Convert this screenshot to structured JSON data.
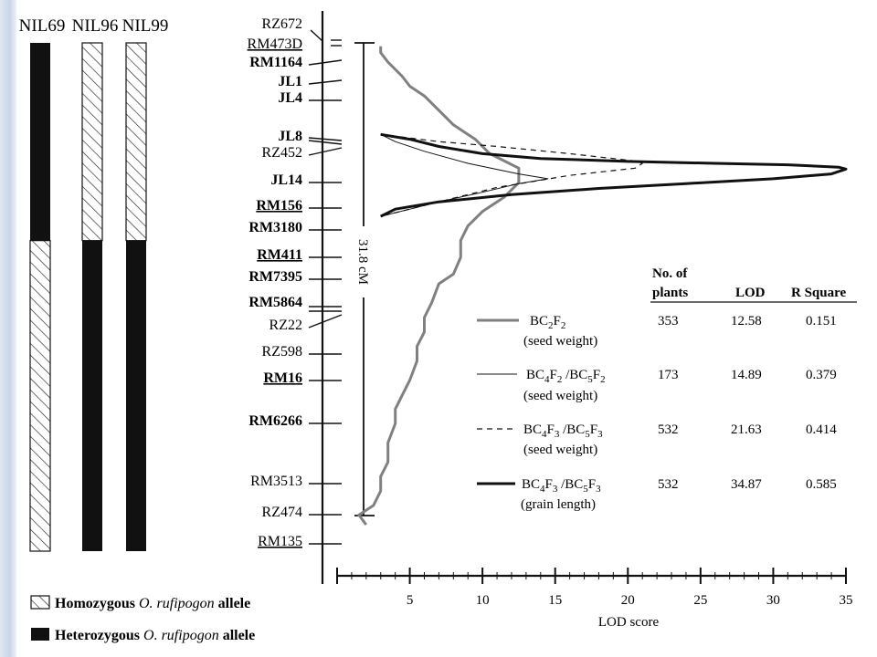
{
  "nils": [
    {
      "name": "NIL69",
      "heterozygous_from": 0.0,
      "heterozygous_to": 0.389
    },
    {
      "name": "NIL96",
      "heterozygous_from": 0.389,
      "heterozygous_to": 1.0
    },
    {
      "name": "NIL99",
      "heterozygous_from": 0.389,
      "heterozygous_to": 1.0
    }
  ],
  "legend": {
    "homozygous": {
      "prefix": "Homozygous ",
      "italic": "O. rufipogon",
      "suffix": " allele"
    },
    "heterozygous": {
      "prefix": "Heterozygous ",
      "italic": "O. rufipogon",
      "suffix": " allele"
    }
  },
  "markers": [
    {
      "name": "RZ672",
      "style": "normal",
      "underline": false
    },
    {
      "name": "RM473D",
      "style": "normal",
      "underline": true
    },
    {
      "name": "RM1164",
      "style": "bold",
      "underline": false
    },
    {
      "name": "JL1",
      "style": "bold",
      "underline": false
    },
    {
      "name": "JL4",
      "style": "bold",
      "underline": false
    },
    {
      "name": "JL8",
      "style": "bold",
      "underline": false
    },
    {
      "name": "RZ452",
      "style": "normal",
      "underline": false
    },
    {
      "name": "JL14",
      "style": "bold",
      "underline": false
    },
    {
      "name": "RM156",
      "style": "bold",
      "underline": true
    },
    {
      "name": "RM3180",
      "style": "bold",
      "underline": false
    },
    {
      "name": "RM411",
      "style": "bold",
      "underline": true
    },
    {
      "name": "RM7395",
      "style": "bold",
      "underline": false
    },
    {
      "name": "RM5864",
      "style": "bold",
      "underline": false
    },
    {
      "name": "RZ22",
      "style": "normal",
      "underline": false
    },
    {
      "name": "RZ598",
      "style": "normal",
      "underline": false
    },
    {
      "name": "RM16",
      "style": "bold",
      "underline": true
    },
    {
      "name": "RM6266",
      "style": "bold",
      "underline": false
    },
    {
      "name": "RM3513",
      "style": "normal",
      "underline": false
    },
    {
      "name": "RZ474",
      "style": "normal",
      "underline": false
    },
    {
      "name": "RM135",
      "style": "normal",
      "underline": true
    }
  ],
  "interval_label": "31.8 cM",
  "axis": {
    "label": "LOD score",
    "min": 0,
    "max": 35,
    "ticks": [
      5,
      10,
      15,
      20,
      25,
      30,
      35
    ]
  },
  "table": {
    "headers": {
      "plants_line1": "No. of",
      "plants_line2": "plants",
      "lod": "LOD",
      "rsq": "R Square"
    },
    "rows": [
      {
        "line": "BC2F2 (seed weight)",
        "plants": "353",
        "lod": "12.58",
        "rsq": "0.151"
      },
      {
        "line": "BC4F2 /BC5F2 (seed weight)",
        "plants": "173",
        "lod": "14.89",
        "rsq": "0.379"
      },
      {
        "line": "BC4F3 /BC5F3 (seed weight)",
        "plants": "532",
        "lod": "21.63",
        "rsq": "0.414"
      },
      {
        "line": "BC4F3 /BC5F3 (grain length)",
        "plants": "532",
        "lod": "34.87",
        "rsq": "0.585"
      }
    ]
  },
  "curves": [
    {
      "name": "BC2F2 seed weight",
      "color": "#808080",
      "points": [
        [
          3,
          0.007
        ],
        [
          3,
          0.02
        ],
        [
          3.5,
          0.04
        ],
        [
          4.5,
          0.07
        ],
        [
          5,
          0.09
        ],
        [
          6,
          0.11
        ],
        [
          7,
          0.14
        ],
        [
          8,
          0.17
        ],
        [
          9.5,
          0.2
        ],
        [
          10.5,
          0.23
        ],
        [
          12.5,
          0.26
        ],
        [
          12.5,
          0.29
        ],
        [
          11.5,
          0.32
        ],
        [
          10,
          0.35
        ],
        [
          9,
          0.38
        ],
        [
          8.5,
          0.41
        ],
        [
          8.5,
          0.445
        ],
        [
          8,
          0.48
        ],
        [
          7,
          0.5
        ],
        [
          6.5,
          0.54
        ],
        [
          6,
          0.57
        ],
        [
          6,
          0.6
        ],
        [
          5.5,
          0.63
        ],
        [
          5.5,
          0.66
        ],
        [
          5,
          0.7
        ],
        [
          4.5,
          0.73
        ],
        [
          4,
          0.76
        ],
        [
          4,
          0.79
        ],
        [
          3.5,
          0.83
        ],
        [
          3.5,
          0.87
        ],
        [
          3,
          0.9
        ],
        [
          3,
          0.93
        ],
        [
          2.5,
          0.96
        ],
        [
          1.5,
          0.98
        ],
        [
          2,
          1.0
        ]
      ]
    },
    {
      "name": "BC4F2 /BC5F2 seed weight",
      "color": "#000000",
      "points": [
        [
          3,
          0.19
        ],
        [
          4,
          0.205
        ],
        [
          6,
          0.225
        ],
        [
          9,
          0.25
        ],
        [
          12.5,
          0.272
        ],
        [
          14.5,
          0.282
        ],
        [
          12.5,
          0.292
        ],
        [
          10,
          0.31
        ],
        [
          7,
          0.33
        ],
        [
          5,
          0.345
        ],
        [
          3,
          0.36
        ]
      ]
    },
    {
      "name": "BC4F3 /BC5F3 seed weight",
      "color": "#000000",
      "points": [
        [
          3,
          0.19
        ],
        [
          7,
          0.205
        ],
        [
          11,
          0.215
        ],
        [
          16,
          0.23
        ],
        [
          20.5,
          0.245
        ],
        [
          21,
          0.25
        ],
        [
          20.5,
          0.26
        ],
        [
          16,
          0.275
        ],
        [
          11,
          0.3
        ],
        [
          7,
          0.33
        ],
        [
          3,
          0.36
        ]
      ]
    },
    {
      "name": "BC4F3 /BC5F3 grain length",
      "color": "#000000",
      "points": [
        [
          3,
          0.19
        ],
        [
          5,
          0.2
        ],
        [
          7,
          0.215
        ],
        [
          10,
          0.23
        ],
        [
          14,
          0.24
        ],
        [
          20,
          0.246
        ],
        [
          26,
          0.25
        ],
        [
          31,
          0.253
        ],
        [
          34.5,
          0.258
        ],
        [
          35,
          0.262
        ],
        [
          34,
          0.272
        ],
        [
          30,
          0.282
        ],
        [
          24,
          0.292
        ],
        [
          18,
          0.302
        ],
        [
          12,
          0.315
        ],
        [
          7,
          0.33
        ],
        [
          4,
          0.345
        ],
        [
          3,
          0.36
        ]
      ]
    }
  ],
  "colors": {
    "heterozygous": "#111111",
    "homozygous_hatch": "#222222",
    "curve_gray": "#808080"
  }
}
